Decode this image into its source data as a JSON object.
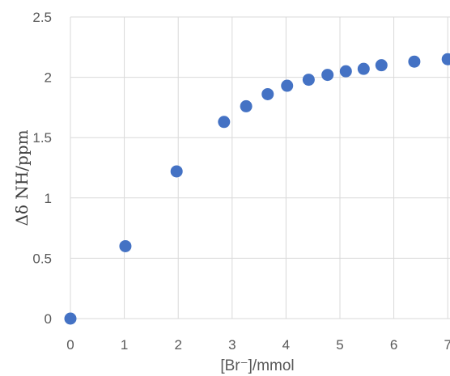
{
  "chart_data": {
    "type": "scatter",
    "title": "",
    "xlabel": "[Br⁻]/mmol",
    "ylabel": "Δδ NH/ppm",
    "xlim": [
      0,
      7
    ],
    "ylim": [
      0,
      2.5
    ],
    "x_ticks": [
      "0",
      "1",
      "2",
      "3",
      "4",
      "5",
      "6",
      "7"
    ],
    "y_ticks": [
      "0",
      "0.5",
      "1",
      "1.5",
      "2",
      "2.5"
    ],
    "grid": true,
    "legend": "none",
    "marker_color": "#4472c4",
    "series": [
      {
        "x": [
          0,
          1.02,
          1.97,
          2.85,
          3.26,
          3.66,
          4.02,
          4.42,
          4.77,
          5.11,
          5.44,
          5.77,
          6.38,
          7.0
        ],
        "y": [
          0,
          0.6,
          1.22,
          1.63,
          1.76,
          1.86,
          1.93,
          1.98,
          2.02,
          2.05,
          2.07,
          2.1,
          2.13,
          2.15
        ]
      }
    ]
  }
}
